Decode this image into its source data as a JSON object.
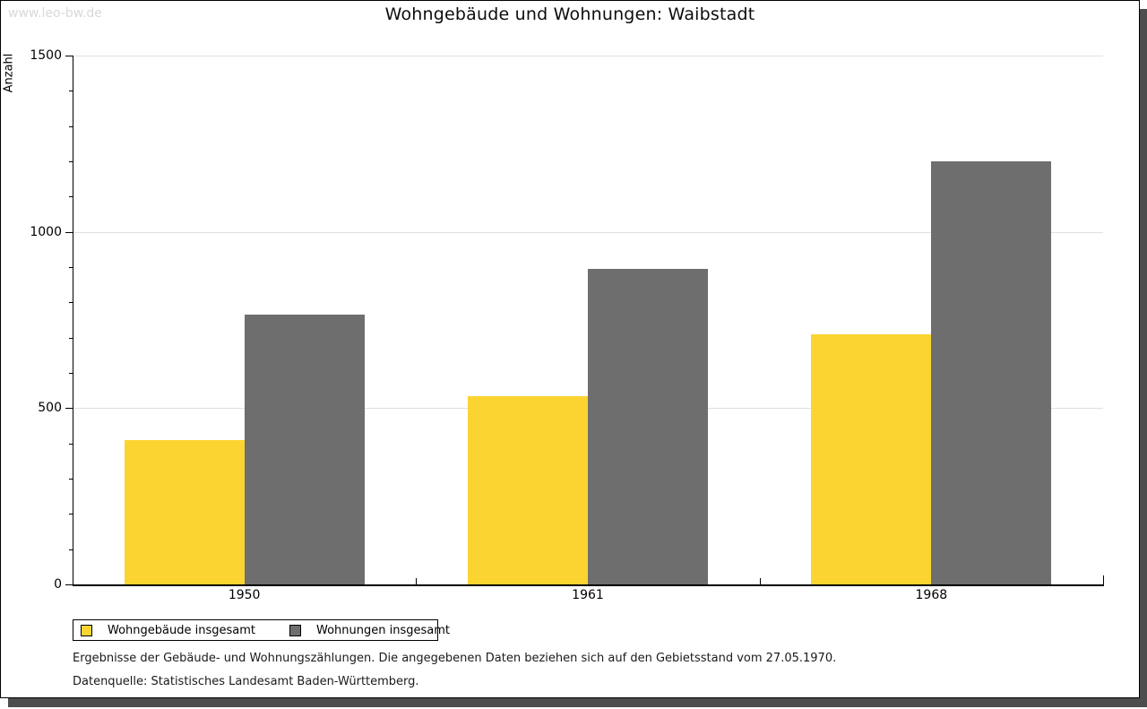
{
  "watermark": "www.leo-bw.de",
  "title": "Wohngebäude und Wohnungen: Waibstadt",
  "chart_data": {
    "type": "bar",
    "title": "Wohngebäude und Wohnungen: Waibstadt",
    "xlabel": "",
    "ylabel": "Anzahl",
    "categories": [
      "1950",
      "1961",
      "1968"
    ],
    "series": [
      {
        "name": "Wohngebäude insgesamt",
        "color": "#fcd431",
        "values": [
          410,
          535,
          710
        ]
      },
      {
        "name": "Wohnungen insgesamt",
        "color": "#6e6e6e",
        "values": [
          765,
          895,
          1200
        ]
      }
    ],
    "ylim": [
      0,
      1500
    ],
    "y_major_ticks": [
      0,
      500,
      1000,
      1500
    ],
    "y_minor_step": 100,
    "grid": true,
    "legend_position": "bottom-left"
  },
  "footnotes": {
    "line1": "Ergebnisse der Gebäude- und Wohnungszählungen. Die angegebenen Daten beziehen sich auf den Gebietsstand vom 27.05.1970.",
    "line2": "Datenquelle: Statistisches Landesamt Baden-Württemberg."
  },
  "colors": {
    "bar_yellow": "#fcd431",
    "bar_gray": "#6e6e6e",
    "gridline": "#e0e0e0",
    "frame_shadow": "#4d4d4d",
    "watermark": "#d9d9d9"
  }
}
